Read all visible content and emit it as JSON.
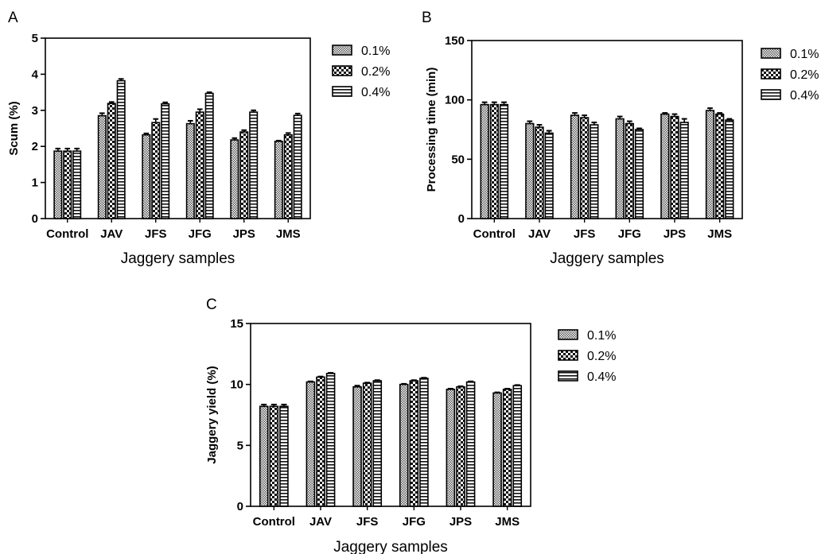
{
  "chart_data": [
    {
      "panel": "A",
      "type": "bar",
      "xlabel": "Jaggery samples",
      "ylabel": "Scum  (%)",
      "ylim": [
        0,
        5
      ],
      "yticks": [
        "0",
        "1",
        "2",
        "3",
        "4",
        "5"
      ],
      "categories": [
        "Control",
        "JAV",
        "JFS",
        "JFG",
        "JPS",
        "JMS"
      ],
      "legend_position": "top-right",
      "series": [
        {
          "name": "0.1%",
          "values": [
            1.87,
            2.85,
            2.32,
            2.63,
            2.18,
            2.14
          ],
          "errors": [
            0.07,
            0.07,
            0.04,
            0.08,
            0.05,
            0.02
          ]
        },
        {
          "name": "0.2%",
          "values": [
            1.87,
            3.19,
            2.66,
            2.95,
            2.4,
            2.32
          ],
          "errors": [
            0.07,
            0.04,
            0.1,
            0.08,
            0.05,
            0.05
          ]
        },
        {
          "name": "0.4%",
          "values": [
            1.87,
            3.82,
            3.18,
            3.47,
            2.95,
            2.86
          ],
          "errors": [
            0.07,
            0.05,
            0.04,
            0.03,
            0.05,
            0.05
          ]
        }
      ]
    },
    {
      "panel": "B",
      "type": "bar",
      "xlabel": "Jaggery samples",
      "ylabel": "Processing time (min)",
      "ylim": [
        0,
        150
      ],
      "yticks": [
        "0",
        "50",
        "100",
        "150"
      ],
      "categories": [
        "Control",
        "JAV",
        "JFS",
        "JFG",
        "JPS",
        "JMS"
      ],
      "legend_position": "top-right",
      "series": [
        {
          "name": "0.1%",
          "values": [
            96,
            80,
            87,
            84,
            88,
            91
          ],
          "errors": [
            2,
            2,
            2,
            2,
            1,
            2
          ]
        },
        {
          "name": "0.2%",
          "values": [
            96,
            77,
            85,
            80,
            86,
            88
          ],
          "errors": [
            2,
            2,
            2,
            2,
            2,
            1
          ]
        },
        {
          "name": "0.4%",
          "values": [
            96,
            72,
            79,
            75,
            81,
            83
          ],
          "errors": [
            2,
            2,
            2,
            1,
            3,
            1
          ]
        }
      ]
    },
    {
      "panel": "C",
      "type": "bar",
      "xlabel": "Jaggery samples",
      "ylabel": "Jaggery yield  (%)",
      "ylim": [
        0,
        15
      ],
      "yticks": [
        "0",
        "5",
        "10",
        "15"
      ],
      "categories": [
        "Control",
        "JAV",
        "JFS",
        "JFG",
        "JPS",
        "JMS"
      ],
      "legend_position": "top-right",
      "series": [
        {
          "name": "0.1%",
          "values": [
            8.2,
            10.2,
            9.8,
            10.0,
            9.6,
            9.3
          ],
          "errors": [
            0.15,
            0.05,
            0.1,
            0.05,
            0.05,
            0.05
          ]
        },
        {
          "name": "0.2%",
          "values": [
            8.2,
            10.6,
            10.1,
            10.3,
            9.8,
            9.6
          ],
          "errors": [
            0.15,
            0.05,
            0.05,
            0.05,
            0.05,
            0.05
          ]
        },
        {
          "name": "0.4%",
          "values": [
            8.2,
            10.9,
            10.3,
            10.5,
            10.2,
            9.9
          ],
          "errors": [
            0.15,
            0.05,
            0.05,
            0.05,
            0.05,
            0.05
          ]
        }
      ]
    }
  ]
}
